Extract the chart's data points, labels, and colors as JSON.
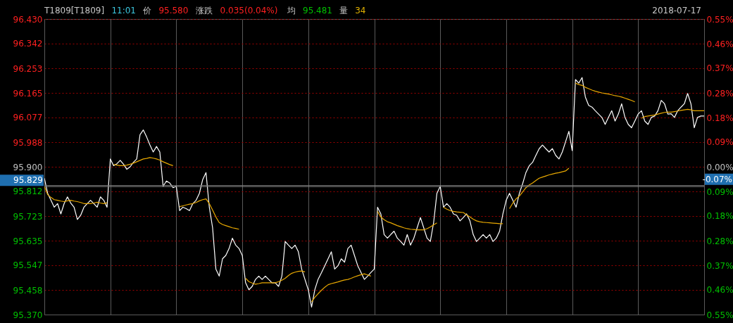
{
  "chart_data": {
    "type": "line",
    "title": "T1809[T1809]",
    "annotations": [
      "11:01",
      "价",
      "95.580",
      "涨跌",
      "0.035(0.04%)",
      "均",
      "95.481",
      "量",
      "34",
      "2018-07-17"
    ],
    "categories": [
      null,
      null,
      null,
      null,
      null,
      null,
      null,
      null,
      null,
      null,
      null,
      null,
      null,
      null,
      null,
      null,
      null,
      null,
      null,
      null,
      null,
      null,
      null,
      null,
      null,
      null,
      null,
      null,
      null,
      null,
      null,
      null,
      null,
      null,
      null,
      null,
      null,
      null,
      null,
      null,
      null,
      null,
      null,
      null,
      null,
      null,
      null,
      null,
      null,
      null,
      null,
      null,
      null,
      null,
      null,
      null,
      null,
      null,
      null,
      null,
      null,
      null,
      null,
      null,
      null,
      null,
      null,
      null,
      null,
      null,
      null,
      null,
      null,
      null,
      null,
      null,
      null,
      null,
      null,
      null,
      null,
      null,
      null,
      null,
      null,
      null,
      null,
      null,
      null,
      null,
      null,
      null,
      null,
      null,
      null,
      null,
      null,
      null,
      null,
      null,
      null,
      null,
      null,
      null,
      null,
      null,
      null,
      null,
      null,
      null,
      null,
      null,
      null,
      null,
      null,
      null,
      null,
      null,
      null,
      null,
      null,
      null,
      null,
      null,
      null,
      null,
      null,
      null,
      null,
      null,
      null,
      null,
      null,
      null,
      null,
      null,
      null,
      null,
      null,
      null,
      null,
      null,
      null,
      null,
      null,
      null,
      null,
      null,
      null,
      null,
      null,
      null,
      null,
      null,
      null,
      null,
      null,
      null,
      null,
      null,
      null,
      null,
      null,
      null,
      null,
      null,
      null,
      null,
      null,
      null,
      null,
      null,
      null,
      null,
      null,
      null,
      null,
      null,
      null,
      null,
      null,
      null,
      null,
      null,
      null,
      null,
      null,
      null,
      null,
      null,
      null,
      null,
      null,
      null,
      null,
      null,
      null,
      null,
      null,
      null,
      null
    ],
    "ylim": [
      95.37,
      96.43
    ],
    "yticks": [
      {
        "value": 95.37,
        "label": "95.370"
      },
      {
        "value": 95.458,
        "label": "95.458"
      },
      {
        "value": 95.547,
        "label": "95.547"
      },
      {
        "value": 95.635,
        "label": "95.635"
      },
      {
        "value": 95.723,
        "label": "95.723"
      },
      {
        "value": 95.812,
        "label": "95.812"
      },
      {
        "value": 95.9,
        "label": "95.900"
      },
      {
        "value": 95.988,
        "label": "95.988"
      },
      {
        "value": 96.077,
        "label": "96.077"
      },
      {
        "value": 96.165,
        "label": "96.165"
      },
      {
        "value": 96.253,
        "label": "96.253"
      },
      {
        "value": 96.342,
        "label": "96.342"
      },
      {
        "value": 96.43,
        "label": "96.430"
      }
    ],
    "y2lim": [
      -0.55,
      0.55
    ],
    "y2ticks": [
      {
        "value": -0.55,
        "label": "0.55%"
      },
      {
        "value": -0.458,
        "label": "0.46%"
      },
      {
        "value": -0.367,
        "label": "0.37%"
      },
      {
        "value": -0.275,
        "label": "0.28%"
      },
      {
        "value": -0.183,
        "label": "0.18%"
      },
      {
        "value": -0.092,
        "label": "0.09%"
      },
      {
        "value": 0,
        "label": "0.00%"
      },
      {
        "value": 0.092,
        "label": "0.09%"
      },
      {
        "value": 0.183,
        "label": "0.18%"
      },
      {
        "value": 0.275,
        "label": "0.28%"
      },
      {
        "value": 0.367,
        "label": "0.37%"
      },
      {
        "value": 0.458,
        "label": "0.46%"
      },
      {
        "value": 0.55,
        "label": "0.55%"
      }
    ],
    "grid": true,
    "tick_labels": "y",
    "ref_lines": [
      {
        "axis": "y",
        "value": 95.829,
        "label": "95.829",
        "color": "#808080"
      },
      {
        "axis": "y2",
        "value": -0.07,
        "label": "-0.07%",
        "color": "#808080"
      }
    ],
    "series": [
      {
        "color": "#ffffff",
        "values": [
          95.859,
          95.805,
          95.78,
          95.755,
          95.768,
          95.731,
          95.768,
          95.792,
          95.77,
          95.755,
          95.711,
          95.726,
          95.755,
          95.768,
          95.78,
          95.768,
          95.755,
          95.792,
          95.78,
          95.755,
          95.928,
          95.904,
          95.911,
          95.923,
          95.909,
          95.891,
          95.9,
          95.916,
          95.928,
          96.015,
          96.032,
          96.007,
          95.978,
          95.953,
          95.973,
          95.953,
          95.83,
          95.849,
          95.842,
          95.825,
          95.83,
          95.743,
          95.755,
          95.75,
          95.743,
          95.768,
          95.78,
          95.805,
          95.854,
          95.879,
          95.755,
          95.681,
          95.533,
          95.508,
          95.57,
          95.582,
          95.607,
          95.644,
          95.619,
          95.607,
          95.582,
          95.484,
          95.459,
          95.471,
          95.496,
          95.508,
          95.496,
          95.508,
          95.496,
          95.484,
          95.484,
          95.471,
          95.508,
          95.632,
          95.619,
          95.607,
          95.619,
          95.595,
          95.533,
          95.496,
          95.459,
          95.397,
          95.46,
          95.497,
          95.52,
          95.545,
          95.57,
          95.595,
          95.533,
          95.545,
          95.57,
          95.558,
          95.607,
          95.619,
          95.582,
          95.545,
          95.521,
          95.496,
          95.508,
          95.521,
          95.533,
          95.755,
          95.731,
          95.657,
          95.644,
          95.657,
          95.669,
          95.644,
          95.632,
          95.619,
          95.657,
          95.619,
          95.644,
          95.681,
          95.718,
          95.681,
          95.644,
          95.632,
          95.7,
          95.805,
          95.83,
          95.755,
          95.768,
          95.755,
          95.731,
          95.726,
          95.706,
          95.718,
          95.731,
          95.706,
          95.657,
          95.632,
          95.644,
          95.657,
          95.644,
          95.657,
          95.632,
          95.644,
          95.669,
          95.731,
          95.78,
          95.805,
          95.78,
          95.755,
          95.805,
          95.84,
          95.88,
          95.904,
          95.916,
          95.941,
          95.965,
          95.978,
          95.965,
          95.953,
          95.965,
          95.941,
          95.928,
          95.953,
          95.99,
          96.027,
          95.958,
          96.213,
          96.2,
          96.22,
          96.15,
          96.12,
          96.114,
          96.101,
          96.089,
          96.077,
          96.052,
          96.077,
          96.101,
          96.064,
          96.089,
          96.126,
          96.077,
          96.052,
          96.04,
          96.064,
          96.089,
          96.101,
          96.064,
          96.052,
          96.077,
          96.082,
          96.101,
          96.138,
          96.126,
          96.089,
          96.09,
          96.077,
          96.101,
          96.114,
          96.126,
          96.163,
          96.126,
          96.04,
          96.077,
          96.082,
          96.082
        ]
      },
      {
        "color": "#e8a800",
        "values": [
          95.83,
          95.8,
          95.79,
          95.782,
          95.78,
          95.777,
          95.775,
          95.778,
          95.78,
          95.777,
          95.775,
          95.772,
          95.768,
          95.768,
          95.768,
          95.77,
          95.773,
          95.77,
          95.768,
          95.771,
          null,
          95.908,
          95.906,
          95.904,
          95.904,
          95.906,
          95.909,
          95.913,
          95.918,
          95.923,
          95.928,
          95.93,
          95.933,
          95.931,
          95.928,
          95.924,
          95.918,
          95.913,
          95.908,
          95.904,
          null,
          95.757,
          95.76,
          95.763,
          95.766,
          95.768,
          95.772,
          95.778,
          95.782,
          95.785,
          95.768,
          95.745,
          95.72,
          95.7,
          95.693,
          95.689,
          95.685,
          95.681,
          95.679,
          95.676,
          null,
          95.5,
          95.488,
          95.483,
          95.479,
          95.481,
          95.484,
          95.484,
          95.484,
          95.484,
          95.484,
          95.488,
          95.493,
          95.5,
          95.51,
          95.518,
          95.522,
          95.525,
          95.526,
          95.523,
          null,
          95.415,
          95.432,
          95.445,
          95.457,
          95.468,
          95.477,
          95.481,
          95.484,
          95.487,
          95.491,
          95.494,
          95.496,
          95.5,
          95.505,
          95.509,
          95.513,
          95.516,
          95.512,
          95.508,
          null,
          95.74,
          95.72,
          95.71,
          95.703,
          95.699,
          95.694,
          95.689,
          95.685,
          95.681,
          95.678,
          95.676,
          95.675,
          95.674,
          95.674,
          95.674,
          95.678,
          95.684,
          95.692,
          95.699,
          null,
          95.755,
          95.748,
          95.743,
          95.74,
          95.738,
          95.737,
          95.736,
          95.728,
          95.72,
          95.712,
          95.706,
          95.703,
          95.701,
          95.7,
          95.699,
          95.698,
          95.697,
          95.696,
          95.696,
          null,
          95.75,
          95.77,
          95.785,
          95.795,
          95.81,
          95.825,
          95.835,
          95.842,
          95.851,
          95.859,
          95.863,
          95.867,
          95.871,
          95.874,
          95.877,
          95.879,
          95.882,
          95.885,
          95.895,
          null,
          96.2,
          96.195,
          96.192,
          96.185,
          96.18,
          96.175,
          96.171,
          96.168,
          96.165,
          96.163,
          96.161,
          96.158,
          96.155,
          96.153,
          96.15,
          96.146,
          96.142,
          96.138,
          96.133,
          null,
          96.074,
          96.08,
          96.082,
          96.084,
          96.086,
          96.089,
          96.092,
          96.095,
          96.096,
          96.096,
          96.098,
          96.1,
          96.102,
          96.104,
          96.106,
          96.104,
          96.101,
          96.101,
          96.101,
          96.101
        ]
      }
    ]
  }
}
